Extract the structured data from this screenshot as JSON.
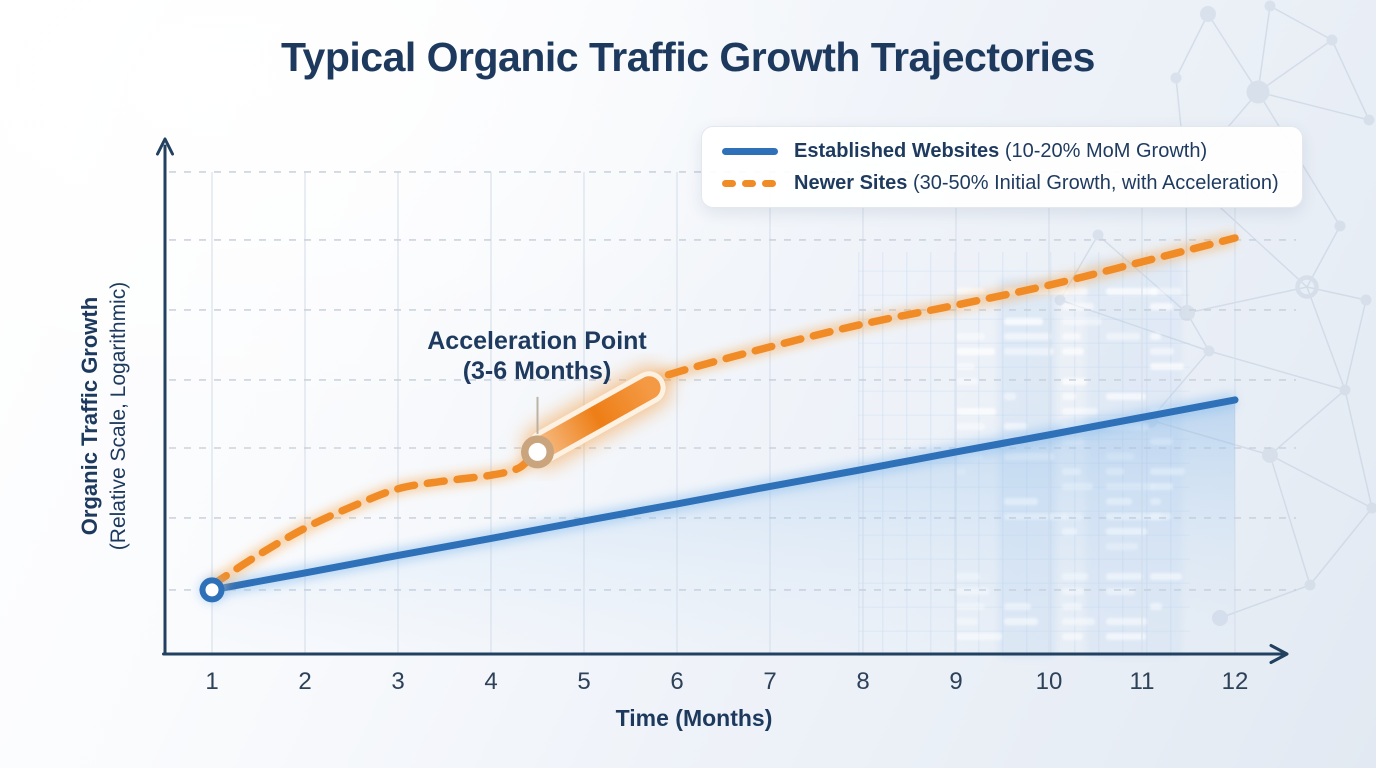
{
  "title": "Typical Organic Traffic Growth Trajectories",
  "legend": {
    "position": "top-right",
    "items": [
      {
        "name": "Established Websites",
        "detail": "(10-20% MoM Growth)",
        "color": "#2e71b8",
        "line_style": "solid"
      },
      {
        "name": "Newer Sites",
        "detail": "(30-50% Initial Growth, with Acceleration)",
        "color": "#f18b26",
        "line_style": "dashed"
      }
    ]
  },
  "axes": {
    "x": {
      "label": "Time (Months)",
      "ticks": [
        "1",
        "2",
        "3",
        "4",
        "5",
        "6",
        "7",
        "8",
        "9",
        "10",
        "11",
        "12"
      ]
    },
    "y": {
      "label": "Organic Traffic Growth",
      "sublabel": "(Relative Scale, Logarithmic)"
    }
  },
  "annotation": {
    "line1": "Acceleration Point",
    "line2": "(3-6 Months)"
  },
  "colors": {
    "title_text": "#1d3a5e",
    "established_line": "#2e71b8",
    "newer_line": "#f18b26",
    "acceleration_ring": "#c9a47c",
    "axis": "#22405f"
  },
  "chart_data": {
    "type": "line",
    "title": "Typical Organic Traffic Growth Trajectories",
    "xlabel": "Time (Months)",
    "ylabel": "Organic Traffic Growth (Relative Scale, Logarithmic)",
    "x": [
      1,
      2,
      3,
      4,
      5,
      6,
      7,
      8,
      9,
      10,
      11,
      12
    ],
    "y_axis_note": "no numeric ticks shown; values below are relative heights (0-1) on the logarithmic scale",
    "grid": {
      "vertical_at_each_month": true,
      "horizontal_dashed_levels": [
        0.136,
        0.284,
        0.428,
        0.568,
        0.712,
        0.856,
        0.996
      ]
    },
    "series": [
      {
        "name": "Established Websites",
        "detail": "10-20% MoM Growth",
        "color": "#2e71b8",
        "line_style": "solid",
        "area_fill": true,
        "points": [
          [
            1,
            0.136
          ],
          [
            2,
            0.171
          ],
          [
            3,
            0.207
          ],
          [
            4,
            0.242
          ],
          [
            5,
            0.278
          ],
          [
            6,
            0.313
          ],
          [
            7,
            0.349
          ],
          [
            8,
            0.384
          ],
          [
            9,
            0.42
          ],
          [
            10,
            0.455
          ],
          [
            11,
            0.491
          ],
          [
            12,
            0.527
          ]
        ]
      },
      {
        "name": "Newer Sites",
        "detail": "30-50% Initial Growth, with Acceleration",
        "color": "#f18b26",
        "line_style": "dashed",
        "points": [
          [
            1,
            0.146
          ],
          [
            1.5,
            0.208
          ],
          [
            2,
            0.263
          ],
          [
            2.5,
            0.307
          ],
          [
            3,
            0.344
          ],
          [
            3.5,
            0.36
          ],
          [
            4,
            0.372
          ],
          [
            4.3,
            0.387
          ],
          [
            4.5,
            0.42
          ],
          [
            5,
            0.477
          ],
          [
            5.5,
            0.531
          ],
          [
            5.8,
            0.568
          ],
          [
            6,
            0.584
          ],
          [
            7,
            0.636
          ],
          [
            8,
            0.683
          ],
          [
            9,
            0.722
          ],
          [
            10,
            0.763
          ],
          [
            11,
            0.811
          ],
          [
            12,
            0.86
          ]
        ]
      }
    ],
    "start_marker": {
      "series": "Established Websites",
      "month": 1,
      "level": 0.136
    },
    "acceleration_marker": {
      "month": 4.5,
      "level": 0.42,
      "label": "Acceleration Point (3-6 Months)"
    },
    "acceleration_segment": {
      "from": {
        "month": 4.58,
        "level": 0.432
      },
      "to": {
        "month": 5.7,
        "level": 0.552
      }
    },
    "legend_position": "top-right"
  }
}
